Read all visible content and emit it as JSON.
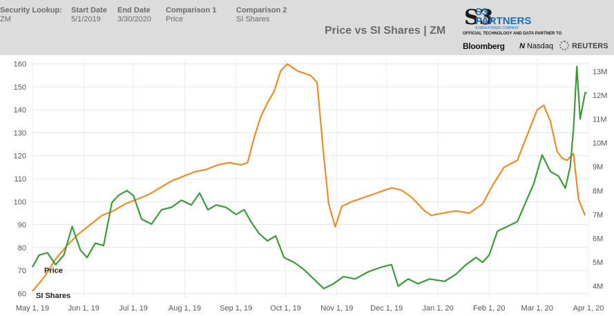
{
  "header": {
    "security_label": "Security Lookup:",
    "security_value": "ZM",
    "start_label": "Start Date",
    "start_value": "5/1/2019",
    "end_label": "End Date",
    "end_value": "3/30/2020",
    "comp1_label": "Comparison 1",
    "comp1_value": "Price",
    "comp2_label": "Comparison 2",
    "comp2_value": "SI Shares"
  },
  "logo": {
    "mark": "S3",
    "name_line1": "S3",
    "name_line2": "PARTNERS",
    "tagline": "A DATA POWER COMPANY",
    "official": "OFFICIAL TECHNOLOGY AND DATA PARTNER TO",
    "partner1": "Bloomberg",
    "partner2": "Nasdaq",
    "partner3": "REUTERS"
  },
  "chart_data": {
    "type": "line",
    "title": "Price vs SI Shares | ZM",
    "xlabel": "",
    "x_ticks": [
      "May 1, 19",
      "Jun 1, 19",
      "Jul 1, 19",
      "Aug 1, 19",
      "Sep 1, 19",
      "Oct 1, 19",
      "Nov 1, 19",
      "Dec 1, 19",
      "Jan 1, 20",
      "Feb 1, 20",
      "Mar 1, 20",
      "Apr 1, 20"
    ],
    "x_range": [
      "2019-05-01",
      "2020-04-01"
    ],
    "y_left": {
      "ylim": [
        58,
        162
      ],
      "ticks": [
        60,
        70,
        80,
        90,
        100,
        110,
        120,
        130,
        140,
        150,
        160
      ],
      "ylabel": ""
    },
    "y_right": {
      "ylim": [
        3.5,
        13.5
      ],
      "ticks": [
        4,
        5,
        6,
        7,
        8,
        9,
        10,
        11,
        12,
        13
      ],
      "tick_labels": [
        "4M",
        "5M",
        "6M",
        "7M",
        "8M",
        "9M",
        "10M",
        "11M",
        "12M",
        "13M"
      ],
      "ylabel": ""
    },
    "grid": true,
    "series": [
      {
        "name": "Price",
        "axis": "left",
        "color": "#f08a24",
        "points": [
          [
            "2019-05-01",
            61
          ],
          [
            "2019-05-08",
            67
          ],
          [
            "2019-05-15",
            75
          ],
          [
            "2019-05-22",
            81
          ],
          [
            "2019-05-29",
            86
          ],
          [
            "2019-06-05",
            90
          ],
          [
            "2019-06-12",
            94
          ],
          [
            "2019-06-19",
            96
          ],
          [
            "2019-06-26",
            99
          ],
          [
            "2019-07-03",
            101
          ],
          [
            "2019-07-10",
            103
          ],
          [
            "2019-07-17",
            106
          ],
          [
            "2019-07-24",
            109
          ],
          [
            "2019-07-31",
            111
          ],
          [
            "2019-08-07",
            113
          ],
          [
            "2019-08-14",
            114
          ],
          [
            "2019-08-21",
            116
          ],
          [
            "2019-08-28",
            117
          ],
          [
            "2019-09-04",
            116
          ],
          [
            "2019-09-08",
            117
          ],
          [
            "2019-09-12",
            128
          ],
          [
            "2019-09-16",
            137
          ],
          [
            "2019-09-20",
            143
          ],
          [
            "2019-09-24",
            148
          ],
          [
            "2019-09-28",
            157
          ],
          [
            "2019-10-02",
            160
          ],
          [
            "2019-10-08",
            157
          ],
          [
            "2019-10-16",
            155
          ],
          [
            "2019-10-20",
            152
          ],
          [
            "2019-10-24",
            120
          ],
          [
            "2019-10-27",
            99
          ],
          [
            "2019-10-31",
            89
          ],
          [
            "2019-11-04",
            98
          ],
          [
            "2019-11-10",
            100
          ],
          [
            "2019-11-18",
            102
          ],
          [
            "2019-11-26",
            104
          ],
          [
            "2019-12-04",
            106
          ],
          [
            "2019-12-10",
            105
          ],
          [
            "2019-12-16",
            102
          ],
          [
            "2019-12-20",
            99
          ],
          [
            "2019-12-24",
            96
          ],
          [
            "2019-12-28",
            94
          ],
          [
            "2020-01-04",
            95
          ],
          [
            "2020-01-12",
            96
          ],
          [
            "2020-01-20",
            95
          ],
          [
            "2020-01-28",
            99
          ],
          [
            "2020-02-03",
            107
          ],
          [
            "2020-02-10",
            115
          ],
          [
            "2020-02-18",
            118
          ],
          [
            "2020-02-24",
            129
          ],
          [
            "2020-03-01",
            140
          ],
          [
            "2020-03-05",
            142
          ],
          [
            "2020-03-09",
            135
          ],
          [
            "2020-03-13",
            122
          ],
          [
            "2020-03-16",
            119
          ],
          [
            "2020-03-19",
            118
          ],
          [
            "2020-03-23",
            121
          ],
          [
            "2020-03-26",
            101
          ],
          [
            "2020-03-30",
            94
          ]
        ]
      },
      {
        "name": "SI Shares",
        "axis": "right",
        "color": "#3a9a3a",
        "points": [
          [
            "2019-05-01",
            4.8
          ],
          [
            "2019-05-05",
            5.3
          ],
          [
            "2019-05-10",
            5.4
          ],
          [
            "2019-05-15",
            4.9
          ],
          [
            "2019-05-20",
            5.3
          ],
          [
            "2019-05-25",
            6.5
          ],
          [
            "2019-05-30",
            5.5
          ],
          [
            "2019-06-03",
            5.2
          ],
          [
            "2019-06-08",
            5.8
          ],
          [
            "2019-06-13",
            5.7
          ],
          [
            "2019-06-18",
            7.5
          ],
          [
            "2019-06-22",
            7.8
          ],
          [
            "2019-06-27",
            8.0
          ],
          [
            "2019-07-01",
            7.8
          ],
          [
            "2019-07-06",
            6.8
          ],
          [
            "2019-07-12",
            6.6
          ],
          [
            "2019-07-18",
            7.2
          ],
          [
            "2019-07-24",
            7.3
          ],
          [
            "2019-07-30",
            7.6
          ],
          [
            "2019-08-05",
            7.4
          ],
          [
            "2019-08-10",
            7.9
          ],
          [
            "2019-08-15",
            7.2
          ],
          [
            "2019-08-20",
            7.4
          ],
          [
            "2019-08-26",
            7.3
          ],
          [
            "2019-09-01",
            7.0
          ],
          [
            "2019-09-06",
            7.2
          ],
          [
            "2019-09-10",
            6.7
          ],
          [
            "2019-09-15",
            6.2
          ],
          [
            "2019-09-20",
            5.9
          ],
          [
            "2019-09-25",
            6.1
          ],
          [
            "2019-09-30",
            5.2
          ],
          [
            "2019-10-06",
            5.0
          ],
          [
            "2019-10-12",
            4.7
          ],
          [
            "2019-10-18",
            4.3
          ],
          [
            "2019-10-24",
            3.9
          ],
          [
            "2019-10-30",
            4.1
          ],
          [
            "2019-11-05",
            4.4
          ],
          [
            "2019-11-12",
            4.3
          ],
          [
            "2019-11-20",
            4.6
          ],
          [
            "2019-11-28",
            4.8
          ],
          [
            "2019-12-04",
            4.9
          ],
          [
            "2019-12-08",
            4.0
          ],
          [
            "2019-12-14",
            4.3
          ],
          [
            "2019-12-20",
            4.1
          ],
          [
            "2019-12-27",
            4.3
          ],
          [
            "2020-01-05",
            4.2
          ],
          [
            "2020-01-12",
            4.5
          ],
          [
            "2020-01-18",
            4.9
          ],
          [
            "2020-01-24",
            5.2
          ],
          [
            "2020-01-28",
            5.0
          ],
          [
            "2020-02-01",
            5.3
          ],
          [
            "2020-02-06",
            6.3
          ],
          [
            "2020-02-12",
            6.5
          ],
          [
            "2020-02-18",
            6.7
          ],
          [
            "2020-02-23",
            7.5
          ],
          [
            "2020-02-28",
            8.3
          ],
          [
            "2020-03-04",
            9.5
          ],
          [
            "2020-03-09",
            8.8
          ],
          [
            "2020-03-14",
            8.6
          ],
          [
            "2020-03-18",
            8.1
          ],
          [
            "2020-03-21",
            9.0
          ],
          [
            "2020-03-23",
            10.6
          ],
          [
            "2020-03-25",
            13.2
          ],
          [
            "2020-03-27",
            11.0
          ],
          [
            "2020-03-30",
            12.1
          ],
          [
            "2020-03-31",
            12.1
          ]
        ]
      }
    ],
    "annotations": [
      {
        "text": "Price",
        "series": "Price"
      },
      {
        "text": "SI Shares",
        "series": "SI Shares"
      }
    ]
  }
}
